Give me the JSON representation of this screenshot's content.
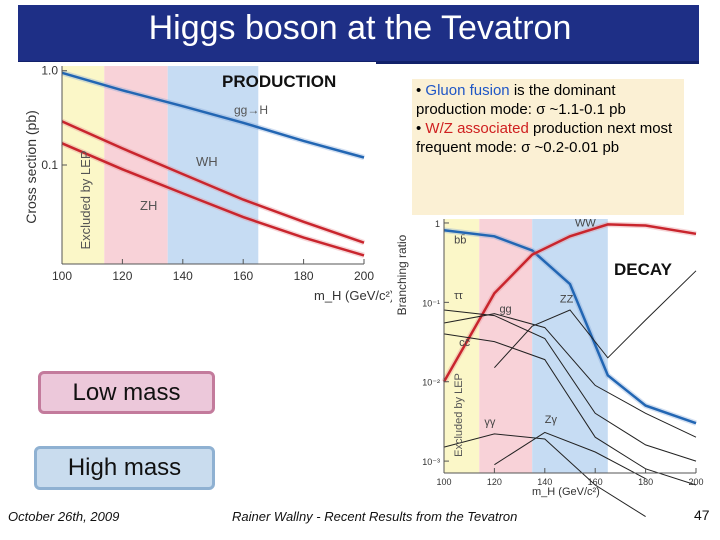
{
  "title": "Higgs boson at the Tevatron",
  "production_label": "PRODUCTION",
  "decay_label": "DECAY",
  "bullets": {
    "b1_prefix": "• ",
    "b1_highlight": "Gluon fusion",
    "b1_rest": " is the dominant production mode: σ ~1.1-0.1 pb",
    "b2_prefix": "• ",
    "b2_highlight": "W/Z associated",
    "b2_rest": " production next most frequent mode: σ ~0.2-0.01 pb"
  },
  "low_mass": "Low mass",
  "high_mass": "High mass",
  "footer": {
    "date": "October 26th, 2009",
    "author": "Rainer Wallny - Recent Results from the Tevatron",
    "page": "47"
  },
  "colors": {
    "title_bg": "#1e2f86",
    "lep_band": "#fbf7c8",
    "low_band": "#f8d2d8",
    "high_band": "#c6dcf3",
    "red_curve": "#c9252d",
    "blue_curve": "#2266b3"
  },
  "chart_data": [
    {
      "type": "line",
      "title": "PRODUCTION",
      "xlabel": "m_H (GeV/c²)",
      "ylabel": "Cross section (pb)",
      "xlim": [
        100,
        200
      ],
      "yscale": "log",
      "x_ticks": [
        "100",
        "120",
        "140",
        "160",
        "180",
        "200"
      ],
      "y_ticks": [
        "1.0",
        "0.1"
      ],
      "bands": [
        {
          "name": "Excluded by LEP",
          "from": 100,
          "to": 114
        },
        {
          "name": "low mass",
          "from": 114,
          "to": 135
        },
        {
          "name": "high mass",
          "from": 135,
          "to": 165
        }
      ],
      "series": [
        {
          "name": "gg→H",
          "x": [
            100,
            120,
            140,
            160,
            180,
            200
          ],
          "values": [
            0.95,
            0.62,
            0.42,
            0.28,
            0.18,
            0.12
          ]
        },
        {
          "name": "WH",
          "x": [
            100,
            120,
            140,
            160,
            180,
            200
          ],
          "values": [
            0.29,
            0.15,
            0.08,
            0.043,
            0.025,
            0.015
          ]
        },
        {
          "name": "ZH",
          "x": [
            100,
            120,
            140,
            160,
            180,
            200
          ],
          "values": [
            0.17,
            0.09,
            0.05,
            0.028,
            0.017,
            0.011
          ]
        }
      ],
      "annotations": [
        "gg→H",
        "WH",
        "ZH",
        "Excluded by LEP"
      ]
    },
    {
      "type": "line",
      "title": "DECAY",
      "xlabel": "m_H (GeV/c²)",
      "ylabel": "Branching ratio",
      "xlim": [
        100,
        200
      ],
      "yscale": "log",
      "x_ticks": [
        "100",
        "120",
        "140",
        "160",
        "180",
        "200"
      ],
      "y_ticks": [
        "1",
        "10⁻¹",
        "10⁻²",
        "10⁻³"
      ],
      "bands": [
        {
          "name": "Excluded by LEP",
          "from": 100,
          "to": 114
        },
        {
          "name": "low mass",
          "from": 114,
          "to": 135
        },
        {
          "name": "high mass",
          "from": 135,
          "to": 165
        }
      ],
      "series": [
        {
          "name": "bb̄",
          "x": [
            100,
            120,
            135,
            150,
            165,
            180,
            200
          ],
          "values": [
            0.81,
            0.68,
            0.45,
            0.17,
            0.012,
            0.005,
            0.003
          ]
        },
        {
          "name": "WW",
          "x": [
            100,
            120,
            135,
            150,
            165,
            180,
            200
          ],
          "values": [
            0.01,
            0.13,
            0.4,
            0.68,
            0.96,
            0.93,
            0.73
          ]
        },
        {
          "name": "ZZ",
          "x": [
            120,
            135,
            150,
            165,
            180,
            200
          ],
          "values": [
            0.015,
            0.05,
            0.08,
            0.02,
            0.06,
            0.25
          ]
        },
        {
          "name": "ττ",
          "x": [
            100,
            120,
            140,
            160,
            180,
            200
          ],
          "values": [
            0.08,
            0.068,
            0.035,
            0.004,
            0.0016,
            0.001
          ]
        },
        {
          "name": "gg",
          "x": [
            100,
            120,
            140,
            160,
            180,
            200
          ],
          "values": [
            0.055,
            0.072,
            0.048,
            0.009,
            0.004,
            0.002
          ]
        },
        {
          "name": "cc̄",
          "x": [
            100,
            120,
            140,
            160,
            180,
            200
          ],
          "values": [
            0.04,
            0.032,
            0.019,
            0.002,
            0.0008,
            0.0005
          ]
        },
        {
          "name": "γγ",
          "x": [
            100,
            120,
            140,
            160,
            180
          ],
          "values": [
            0.0015,
            0.0022,
            0.0019,
            0.0005,
            0.0002
          ]
        },
        {
          "name": "Zγ",
          "x": [
            120,
            140,
            160,
            180
          ],
          "values": [
            0.0009,
            0.0023,
            0.0013,
            0.0006
          ]
        }
      ],
      "annotations": [
        "bb̄",
        "WW",
        "ZZ",
        "ττ",
        "gg",
        "cc̄",
        "γγ",
        "Zγ",
        "Excluded by LEP"
      ]
    }
  ]
}
